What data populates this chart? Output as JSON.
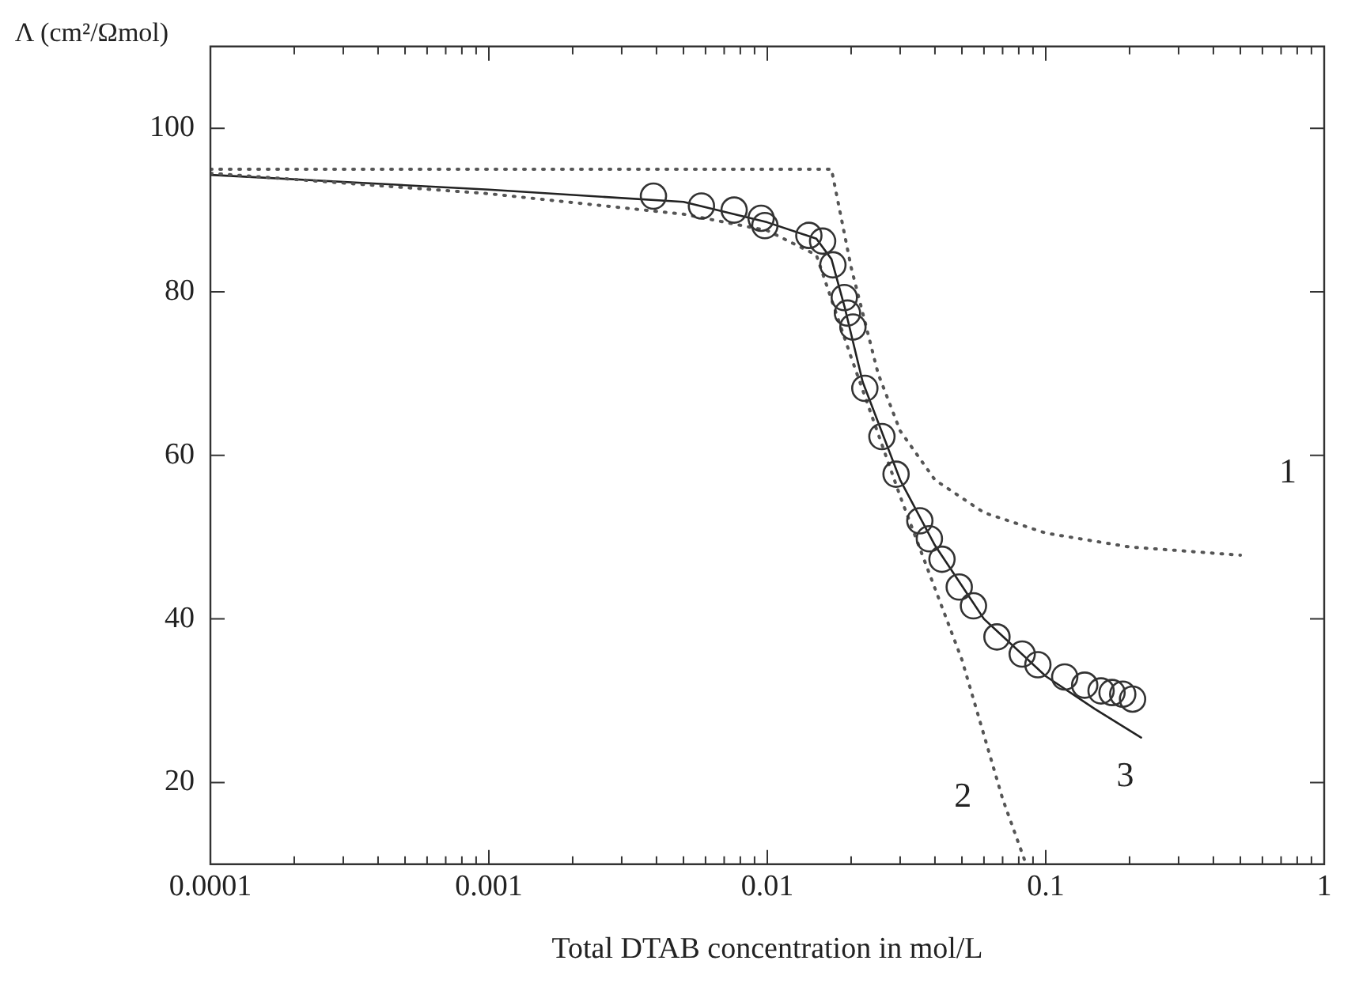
{
  "chart_data": {
    "type": "scatter",
    "xlabel": "Total DTAB concentration in mol/L",
    "ylabel": "Λ (cm²/Ωmol)",
    "log": "x",
    "grid": false,
    "legend": false,
    "marker": "circle",
    "xlim": [
      0.0001,
      1
    ],
    "ylim": [
      10,
      110
    ],
    "xticks": [
      0.0001,
      {
        "value": 0.0002,
        "label": null
      },
      {
        "value": 0.0003,
        "label": null
      },
      {
        "value": 0.0004,
        "label": null
      },
      {
        "value": 0.0005,
        "label": null
      },
      {
        "value": 0.0006,
        "label": null
      },
      {
        "value": 0.0007,
        "label": null
      },
      {
        "value": 0.0008,
        "label": null
      },
      {
        "value": 0.0009,
        "label": null
      },
      0.001,
      {
        "value": 0.002,
        "label": null
      },
      {
        "value": 0.003,
        "label": null
      },
      {
        "value": 0.004,
        "label": null
      },
      {
        "value": 0.005,
        "label": null
      },
      {
        "value": 0.006,
        "label": null
      },
      {
        "value": 0.007,
        "label": null
      },
      {
        "value": 0.008,
        "label": null
      },
      {
        "value": 0.009,
        "label": null
      },
      0.01,
      {
        "value": 0.02,
        "label": null
      },
      {
        "value": 0.03,
        "label": null
      },
      {
        "value": 0.04,
        "label": null
      },
      {
        "value": 0.05,
        "label": null
      },
      {
        "value": 0.06,
        "label": null
      },
      {
        "value": 0.07,
        "label": null
      },
      {
        "value": 0.08,
        "label": null
      },
      {
        "value": 0.09,
        "label": null
      },
      0.1,
      {
        "value": 0.2,
        "label": null
      },
      {
        "value": 0.3,
        "label": null
      },
      {
        "value": 0.4,
        "label": null
      },
      {
        "value": 0.5,
        "label": null
      },
      {
        "value": 0.6,
        "label": null
      },
      {
        "value": 0.7,
        "label": null
      },
      {
        "value": 0.8,
        "label": null
      },
      {
        "value": 0.9,
        "label": null
      },
      1
    ],
    "yticks": [
      20,
      40,
      60,
      80,
      100
    ],
    "series": [
      {
        "color": "#333333",
        "x": [
          0.0039,
          0.0058,
          0.0076,
          0.0095,
          0.0098,
          0.0141,
          0.0158,
          0.0172,
          0.0189,
          0.0194,
          0.0203,
          0.0224,
          0.0258,
          0.029,
          0.0353,
          0.0382,
          0.0424,
          0.0489,
          0.055,
          0.0668,
          0.0823,
          0.0937,
          0.117,
          0.138,
          0.158,
          0.173,
          0.189,
          0.205
        ],
        "values": [
          91.7,
          90.5,
          90.0,
          89.0,
          88.1,
          86.9,
          86.2,
          83.3,
          79.3,
          77.4,
          75.7,
          68.2,
          62.3,
          57.7,
          52.0,
          49.8,
          47.3,
          43.9,
          41.6,
          37.8,
          35.7,
          34.4,
          32.9,
          31.9,
          31.2,
          31.0,
          30.8,
          30.2
        ]
      },
      {
        "name": "1",
        "type": "line",
        "color": "#555555",
        "marker": "none",
        "line_style": "dotted",
        "x": [
          0.0001,
          0.017,
          0.02,
          0.025,
          0.03,
          0.04,
          0.06,
          0.1,
          0.2,
          0.5
        ],
        "values": [
          95,
          95,
          83,
          70,
          63,
          57,
          53,
          50.5,
          48.8,
          47.8
        ]
      },
      {
        "name": "2",
        "type": "line",
        "color": "#555555",
        "marker": "none",
        "line_style": "dotted",
        "x": [
          0.0001,
          0.001,
          0.005,
          0.01,
          0.015,
          0.02,
          0.03,
          0.05,
          0.07,
          0.085
        ],
        "values": [
          94.5,
          92,
          89.5,
          87.5,
          84.5,
          72,
          55,
          35,
          18,
          10
        ]
      },
      {
        "name": "3",
        "type": "line",
        "color": "#222222",
        "marker": "none",
        "line_style": "solid",
        "x": [
          0.0001,
          0.001,
          0.005,
          0.01,
          0.015,
          0.017,
          0.019,
          0.022,
          0.03,
          0.04,
          0.06,
          0.1,
          0.15,
          0.22
        ],
        "values": [
          94.3,
          92.5,
          91,
          88.5,
          86.5,
          84,
          78,
          69,
          57,
          49,
          40,
          33,
          29,
          25.5
        ]
      }
    ]
  }
}
